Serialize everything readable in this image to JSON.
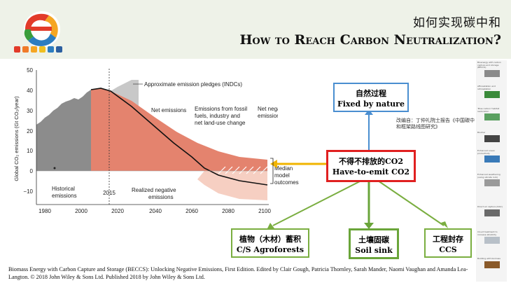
{
  "header": {
    "title_zh": "如何实现碳中和",
    "title_en": "How to Reach Carbon Neutralization?"
  },
  "colors": {
    "header_band": "#eef2e8",
    "historical": "#8c8c8c",
    "pledges": "#c8c8c8",
    "net_emissions": "#e4836e",
    "net_negative": "#f6cfc2",
    "fixed_border": "#4a8ed0",
    "emit_border": "#e02020",
    "green_border": "#7aae40",
    "median_arrow": "#f0b400"
  },
  "boxes": {
    "fixed": {
      "zh": "自然过程",
      "en": "Fixed by nature"
    },
    "emit": {
      "zh": "不得不排放的CO2",
      "en": "Have-to-emit CO2"
    },
    "agro": {
      "zh": "植物（木材）蓄积",
      "en": "C/S Agroforests"
    },
    "soil": {
      "zh": "土壤固碳",
      "en": "Soil sink"
    },
    "ccs": {
      "zh": "工程封存",
      "en": "CCS"
    }
  },
  "note": "改编自：丁仲礼院士报告《中国碳中和框架路线图研究》",
  "citation": "Biomass Energy with Carbon Capture and Storage (BECCS): Unlocking Negative Emissions, First Edition. Edited by Clair Gough, Patricia Thornley, Sarah Mander, Naomi Vaughan and Amanda Lea-Langton. © 2018 John Wiley & Sons Ltd. Published 2018 by John Wiley & Sons Ltd.",
  "chart": {
    "ylabel": "Global CO₂ emissions (Gt CO₂/year)",
    "y_ticks": [
      "50",
      "40",
      "30",
      "20",
      "10",
      "0",
      "−10"
    ],
    "x_ticks": [
      "1980",
      "2000",
      "2020",
      "2040",
      "2060",
      "2080",
      "2100"
    ],
    "year_marker": "2015",
    "labels": {
      "indcs": "Approximate emission pledges (INDCs)",
      "net_emissions": "Net emissions",
      "fossil_1": "Emissions from fossil",
      "fossil_2": "fuels, industry and",
      "fossil_3": "net land-use change",
      "net_negative_1": "Net negative",
      "net_negative_2": "emissions",
      "historical_1": "Historical",
      "historical_2": "emissions",
      "realized_1": "Realized negative",
      "realized_2": "emissions",
      "median_1": "Median",
      "median_2": "model",
      "median_3": "outcomes"
    }
  },
  "sidebar": [
    {
      "label": "Bioenergy with carbon capture and storage (BECCS)"
    },
    {
      "label": "Afforestation and reforestation"
    },
    {
      "label": "'Blue carbon' habitat restoration"
    },
    {
      "label": "Biochar"
    },
    {
      "label": "Enhanced ocean productivity"
    },
    {
      "label": "Enhanced weathering (using silicate rock)"
    },
    {
      "label": "Direct air capture (DAC)"
    },
    {
      "label": "Cloud treatment to increase alkalinity"
    },
    {
      "label": "Building with biomass"
    }
  ]
}
